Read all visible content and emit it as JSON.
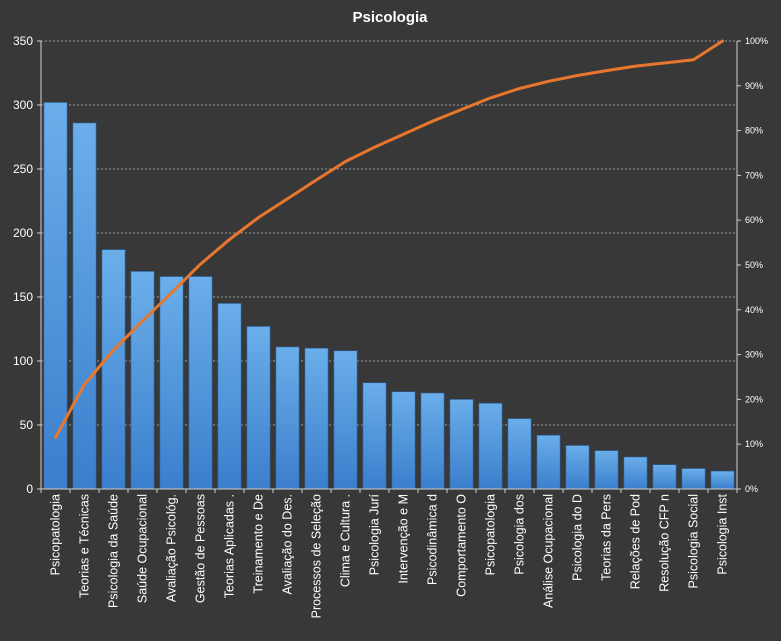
{
  "chart_data": {
    "type": "bar",
    "title": "Psicologia",
    "categories": [
      "Psicopatologia",
      "Teorias e Técnicas",
      "Psicologia da Saúde",
      "Saúde Ocupacional",
      "Avaliação Psicológ.",
      "Gestão de Pessoas",
      "Teorias Aplicadas .",
      "Treinamento e De",
      "Avaliação do Des.",
      "Processos de Seleção",
      "Clima e Cultura .",
      "Psicologia Jurí",
      "Intervenção e M",
      "Psicodinâmica d",
      "Comportamento  O",
      "Psicopatologia",
      "Psicologia dos",
      "Análise Ocupacional",
      "Psicologia do D",
      "Teorias da Pers",
      "Relações de Pod",
      "Resolução CFP n",
      "Psicologia Social",
      "Psicologia Inst"
    ],
    "series": [
      {
        "type": "bar",
        "axis": "primary",
        "color": "#4a8fd6",
        "values": [
          302,
          286,
          187,
          170,
          166,
          166,
          145,
          127,
          111,
          110,
          108,
          83,
          76,
          75,
          70,
          67,
          55,
          42,
          34,
          30,
          25,
          19,
          16,
          14
        ]
      },
      {
        "type": "line",
        "axis": "secondary",
        "color": "#e8772e",
        "values": [
          11.5,
          23.4,
          31.0,
          37.5,
          43.8,
          50.2,
          55.7,
          60.6,
          64.8,
          69.0,
          73.1,
          76.3,
          79.2,
          82.1,
          84.7,
          87.3,
          89.4,
          91.0,
          92.3,
          93.4,
          94.4,
          95.1,
          95.8,
          100
        ]
      }
    ],
    "ylim": [
      0,
      350
    ],
    "y_ticks": [
      "0",
      "50",
      "100",
      "150",
      "200",
      "250",
      "300",
      "350"
    ],
    "y2lim": [
      0,
      100
    ],
    "y2_ticks": [
      "0%",
      "10%",
      "20%",
      "30%",
      "40%",
      "50%",
      "60%",
      "70%",
      "80%",
      "90%",
      "100%"
    ],
    "grid": true,
    "legend": "none"
  }
}
